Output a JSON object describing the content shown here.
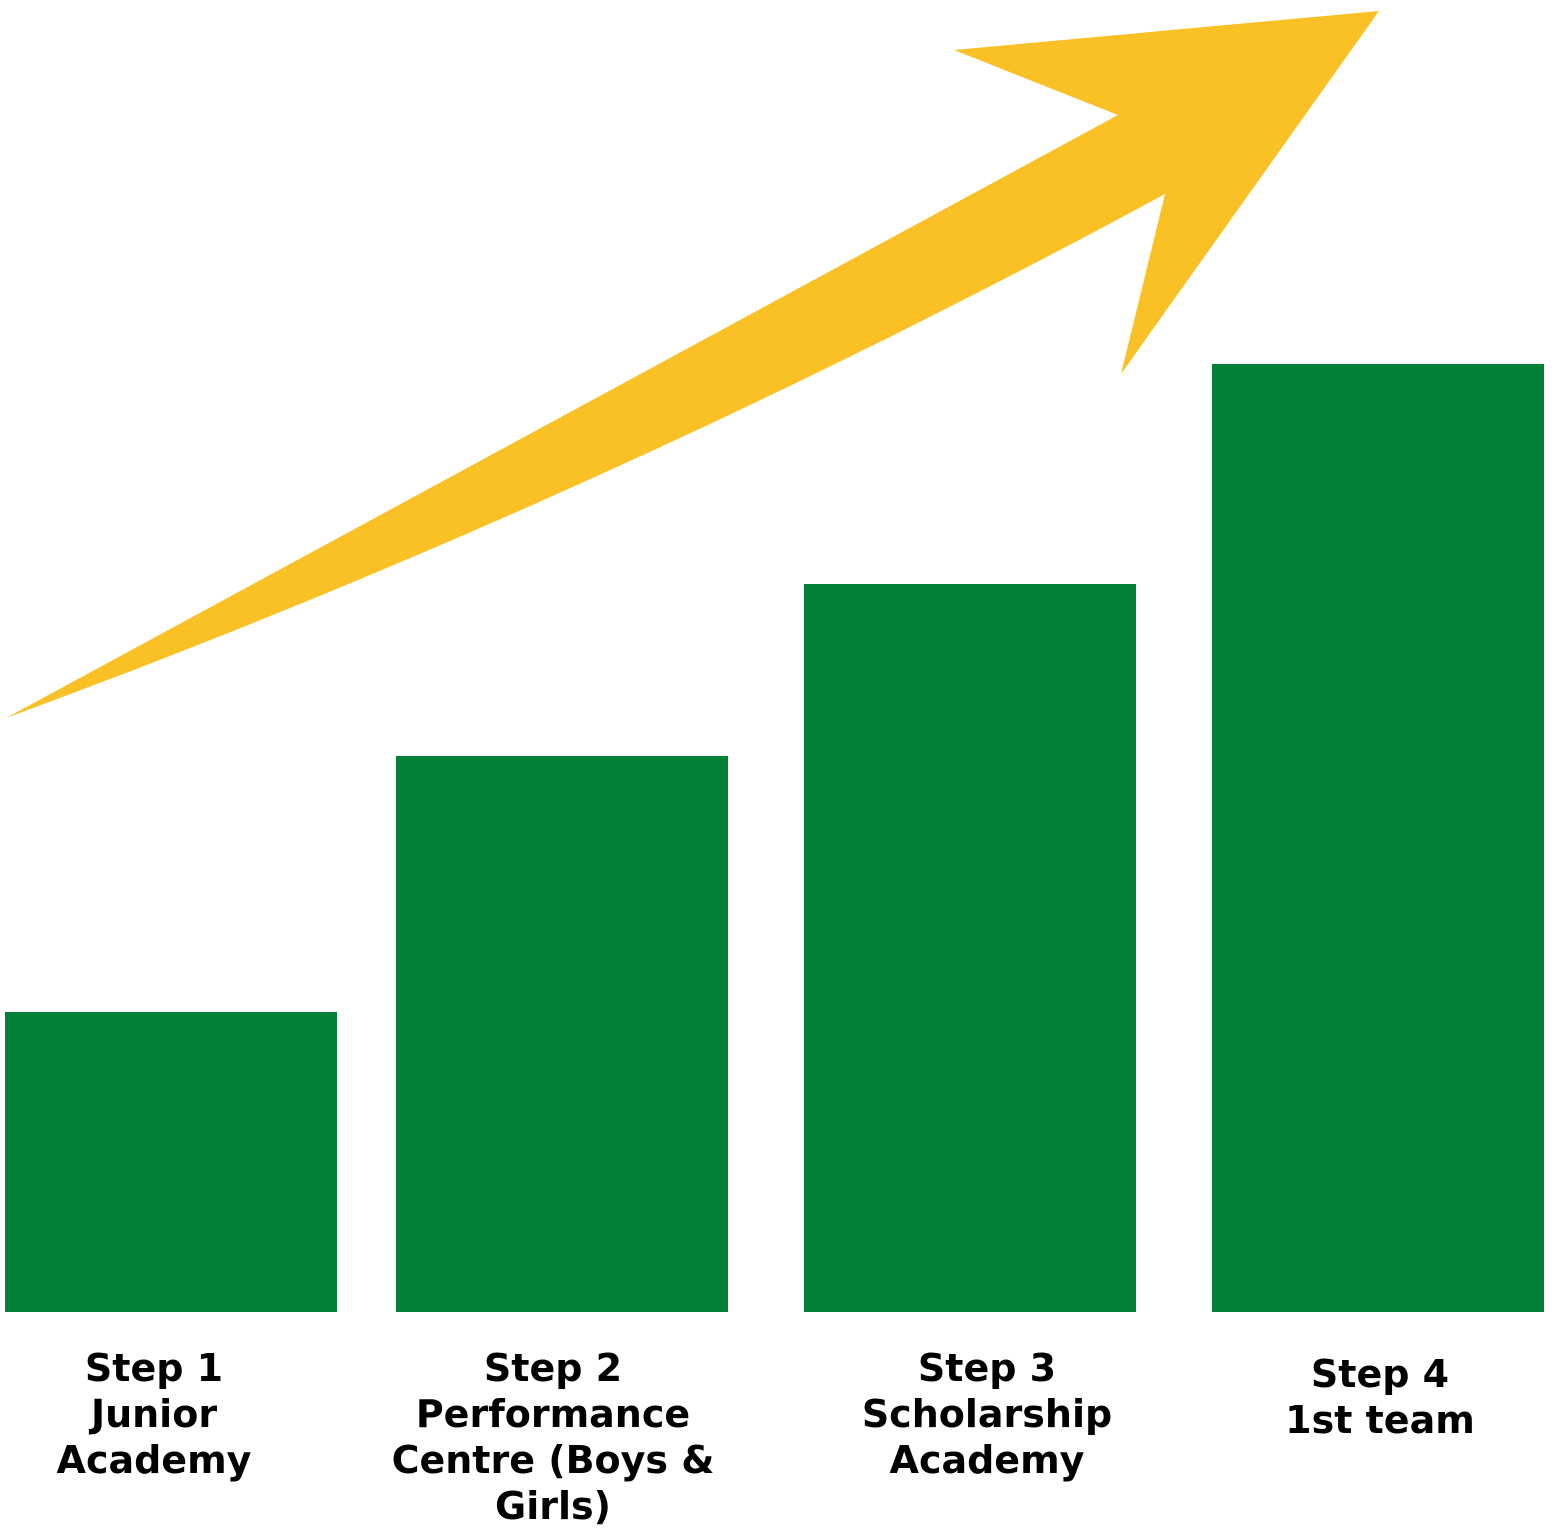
{
  "colors": {
    "bar": "#028038",
    "arrow": "#f9c125",
    "text": "#000000",
    "background": "#ffffff"
  },
  "arrow": {
    "icon": "upward-trend-arrow-icon"
  },
  "steps": [
    {
      "title": "Step 1",
      "lines": [
        "Junior",
        "Academy"
      ]
    },
    {
      "title": "Step 2",
      "lines": [
        "Performance",
        "Centre (Boys &",
        "Girls)"
      ]
    },
    {
      "title": "Step 3",
      "lines": [
        "Scholarship",
        "Academy"
      ]
    },
    {
      "title": "Step 4",
      "lines": [
        "1st team"
      ]
    }
  ]
}
